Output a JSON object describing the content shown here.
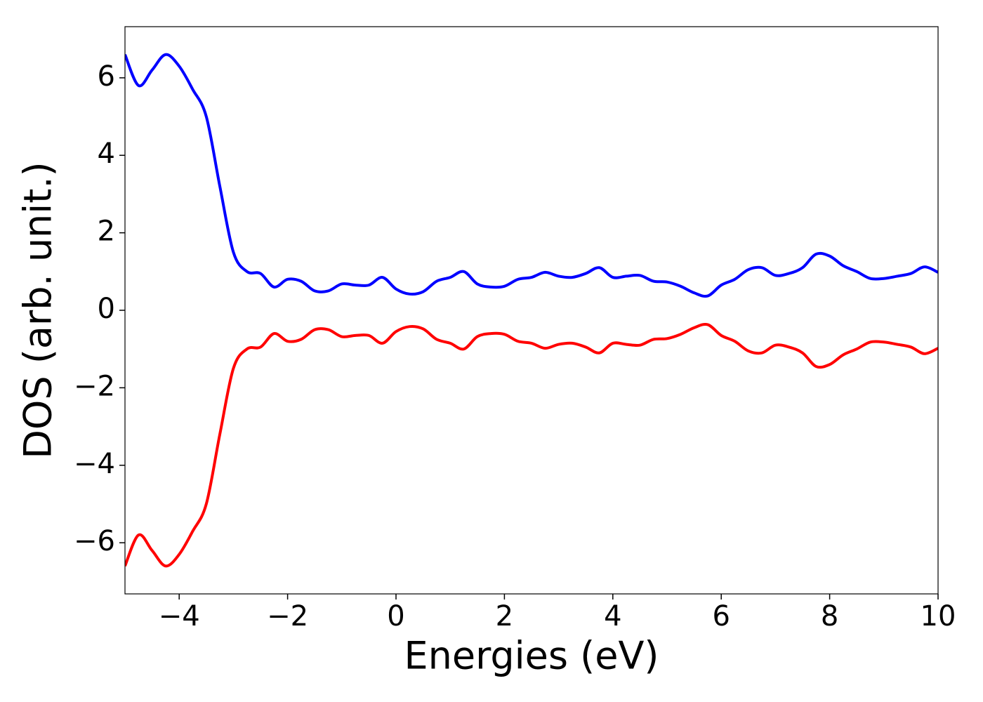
{
  "chart_data": {
    "type": "line",
    "x_label": "Energies (eV)",
    "y_label": "DOS (arb. unit.)",
    "x": [
      -5,
      -4.75,
      -4.5,
      -4.25,
      -4,
      -3.75,
      -3.5,
      -3.25,
      -3,
      -2.75,
      -2.5,
      -2.25,
      -2,
      -1.75,
      -1.5,
      -1.25,
      -1,
      -0.75,
      -0.5,
      -0.25,
      0,
      0.25,
      0.5,
      0.75,
      1,
      1.25,
      1.5,
      1.75,
      2,
      2.25,
      2.5,
      2.75,
      3,
      3.25,
      3.5,
      3.75,
      4,
      4.25,
      4.5,
      4.75,
      5,
      5.25,
      5.5,
      5.75,
      6,
      6.25,
      6.5,
      6.75,
      7,
      7.25,
      7.5,
      7.75,
      8,
      8.25,
      8.5,
      8.75,
      9,
      9.25,
      9.5,
      9.75,
      10
    ],
    "series": [
      {
        "color": "#0000ff",
        "values": [
          6.6,
          5.8,
          6.2,
          6.6,
          6.3,
          5.7,
          5.0,
          3.2,
          1.5,
          1.0,
          0.95,
          0.6,
          0.8,
          0.75,
          0.5,
          0.5,
          0.68,
          0.65,
          0.65,
          0.85,
          0.55,
          0.42,
          0.48,
          0.75,
          0.85,
          1.0,
          0.68,
          0.6,
          0.62,
          0.8,
          0.85,
          0.98,
          0.88,
          0.85,
          0.95,
          1.1,
          0.85,
          0.88,
          0.9,
          0.75,
          0.73,
          0.62,
          0.45,
          0.37,
          0.65,
          0.8,
          1.05,
          1.1,
          0.9,
          0.95,
          1.1,
          1.45,
          1.4,
          1.15,
          1.0,
          0.82,
          0.82,
          0.88,
          0.95,
          1.12,
          0.98
        ]
      },
      {
        "color": "#ff0000",
        "values": [
          -6.6,
          -5.8,
          -6.2,
          -6.6,
          -6.3,
          -5.7,
          -5.0,
          -3.2,
          -1.5,
          -1.0,
          -0.95,
          -0.6,
          -0.8,
          -0.75,
          -0.5,
          -0.5,
          -0.68,
          -0.65,
          -0.65,
          -0.85,
          -0.55,
          -0.42,
          -0.48,
          -0.75,
          -0.85,
          -1.0,
          -0.68,
          -0.6,
          -0.62,
          -0.8,
          -0.85,
          -0.98,
          -0.88,
          -0.85,
          -0.95,
          -1.1,
          -0.85,
          -0.88,
          -0.9,
          -0.75,
          -0.73,
          -0.62,
          -0.45,
          -0.37,
          -0.65,
          -0.8,
          -1.05,
          -1.1,
          -0.9,
          -0.95,
          -1.1,
          -1.45,
          -1.4,
          -1.15,
          -1.0,
          -0.82,
          -0.82,
          -0.88,
          -0.95,
          -1.12,
          -0.98
        ]
      }
    ],
    "xlim": [
      -5,
      10
    ],
    "xticks": [
      {
        "value": -4,
        "label": "−4"
      },
      {
        "value": -2,
        "label": "−2"
      },
      0,
      2,
      4,
      6,
      8,
      10
    ],
    "ylim": [
      -7.32,
      7.32
    ],
    "yticks": [
      {
        "value": -6,
        "label": "−6"
      },
      {
        "value": -4,
        "label": "−4"
      },
      {
        "value": -2,
        "label": "−2"
      },
      0,
      2,
      4,
      6
    ]
  }
}
